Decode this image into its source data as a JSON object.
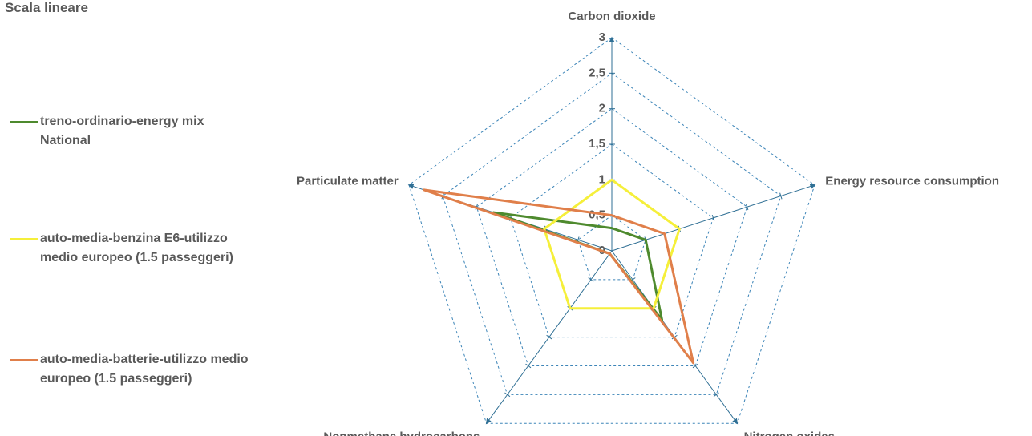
{
  "chart_data": {
    "type": "radar",
    "title": "Scala lineare",
    "categories": [
      "Carbon dioxide",
      "Energy resource consumption",
      "Nitrogen oxides",
      "Nonmethane hydrocarbons",
      "Particulate matter"
    ],
    "series": [
      {
        "name": "treno-ordinario-energy mix National",
        "color": "#4e8a2e",
        "values": [
          0.32,
          0.5,
          1.2,
          0.05,
          1.75
        ]
      },
      {
        "name": "auto-media-benzina E6-utilizzo medio europeo (1.5 passeggeri)",
        "color": "#f5ef3a",
        "values": [
          1,
          1,
          1,
          1,
          1
        ]
      },
      {
        "name": "auto-media-batterie-utilizzo medio europeo (1.5 passeggeri)",
        "color": "#e07f4a",
        "values": [
          0.5,
          0.78,
          1.95,
          0.05,
          2.78
        ]
      }
    ],
    "ylim": [
      0,
      3
    ],
    "yticks": [
      0,
      {
        "value": 0.5,
        "label": "0,5"
      },
      1,
      {
        "value": 1.5,
        "label": "1,5"
      },
      2,
      {
        "value": 2.5,
        "label": "2,5"
      },
      3
    ],
    "grid": true
  }
}
